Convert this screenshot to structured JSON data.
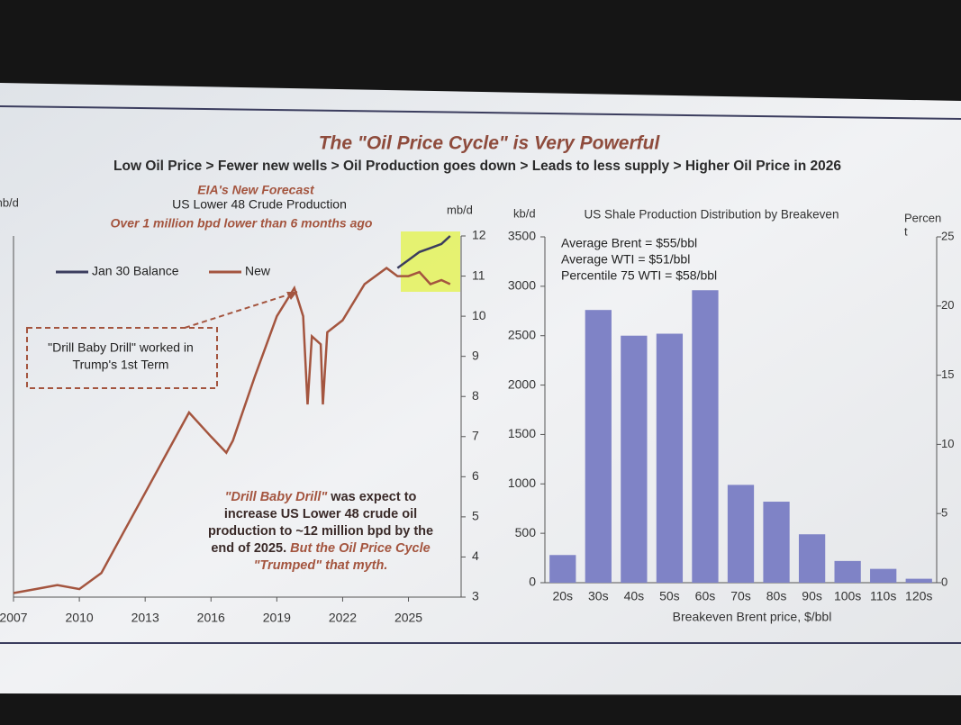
{
  "slide": {
    "title": "The \"Oil Price Cycle\" is Very Powerful",
    "subtitle": "Low Oil Price > Fewer new wells > Oil Production goes down > Leads to less supply > Higher Oil Price in 2026"
  },
  "chart_data": [
    {
      "type": "line",
      "title": "EIA's New Forecast",
      "subtitle": "US Lower 48 Crude Production",
      "annotation": "Over 1 million bpd lower than 6 months ago",
      "y_label_left": "mb/d",
      "y_label": "mb/d",
      "callout": [
        "\"Drill Baby Drill\" worked in",
        "Trump's 1st Term"
      ],
      "note": [
        [
          "\"Drill Baby Drill\"",
          " was expect to"
        ],
        [
          "increase US Lower 48 crude oil"
        ],
        [
          "production to ~12 million bpd by the"
        ],
        [
          "end of 2025.  ",
          "But the Oil Price Cycle"
        ],
        [
          "\"Trumped\" that myth."
        ]
      ],
      "x": [
        2007,
        2008,
        2009,
        2010,
        2011,
        2012,
        2013,
        2014,
        2015,
        2016,
        2016.7,
        2017,
        2018,
        2019,
        2019.8,
        2020.2,
        2020.4,
        2020.6,
        2021,
        2021.1,
        2021.3,
        2022,
        2023,
        2024,
        2024.5,
        2025,
        2025.5,
        2026,
        2026.5,
        2026.9
      ],
      "series": [
        {
          "name": "Jan 30 Balance",
          "color": "#3b3d5e",
          "values": [
            null,
            null,
            null,
            null,
            null,
            null,
            null,
            null,
            null,
            null,
            null,
            null,
            null,
            null,
            null,
            null,
            null,
            null,
            null,
            null,
            null,
            null,
            null,
            null,
            11.2,
            11.4,
            11.6,
            11.7,
            11.8,
            12.0
          ]
        },
        {
          "name": "New",
          "color": "#a4553f",
          "values": [
            3.1,
            3.2,
            3.3,
            3.2,
            3.6,
            4.6,
            5.6,
            6.6,
            7.6,
            7.0,
            6.6,
            6.9,
            8.5,
            10.0,
            10.7,
            10.0,
            7.8,
            9.5,
            9.3,
            7.8,
            9.6,
            9.9,
            10.8,
            11.2,
            11.0,
            11.0,
            11.1,
            10.8,
            10.9,
            10.8
          ]
        }
      ],
      "xlim": [
        2007,
        2027.4
      ],
      "xticks": [
        2007,
        2010,
        2013,
        2016,
        2019,
        2022,
        2025
      ],
      "ylim": [
        3,
        12
      ],
      "yticks": [
        3,
        4,
        5,
        6,
        7,
        8,
        9,
        10,
        11,
        12
      ]
    },
    {
      "type": "bar",
      "title": "US Shale Production Distribution by Breakeven",
      "y_label": "kb/d",
      "y2_label": [
        "Percen",
        "t"
      ],
      "x_label": "Breakeven Brent price, $/bbl",
      "annotations": [
        "Average Brent = $55/bbl",
        "Average WTI = $51/bbl",
        "Percentile 75 WTI =  $58/bbl"
      ],
      "categories": [
        "20s",
        "30s",
        "40s",
        "50s",
        "60s",
        "70s",
        "80s",
        "90s",
        "100s",
        "110s",
        "120s"
      ],
      "values": [
        280,
        2760,
        2500,
        2520,
        2960,
        990,
        820,
        490,
        220,
        140,
        40
      ],
      "color": "#7f83c6",
      "ylim": [
        0,
        3500
      ],
      "yticks": [
        0,
        500,
        1000,
        1500,
        2000,
        2500,
        3000,
        3500
      ],
      "y2lim": [
        0,
        25
      ],
      "y2ticks": [
        0,
        5,
        10,
        15,
        20,
        25
      ]
    }
  ]
}
